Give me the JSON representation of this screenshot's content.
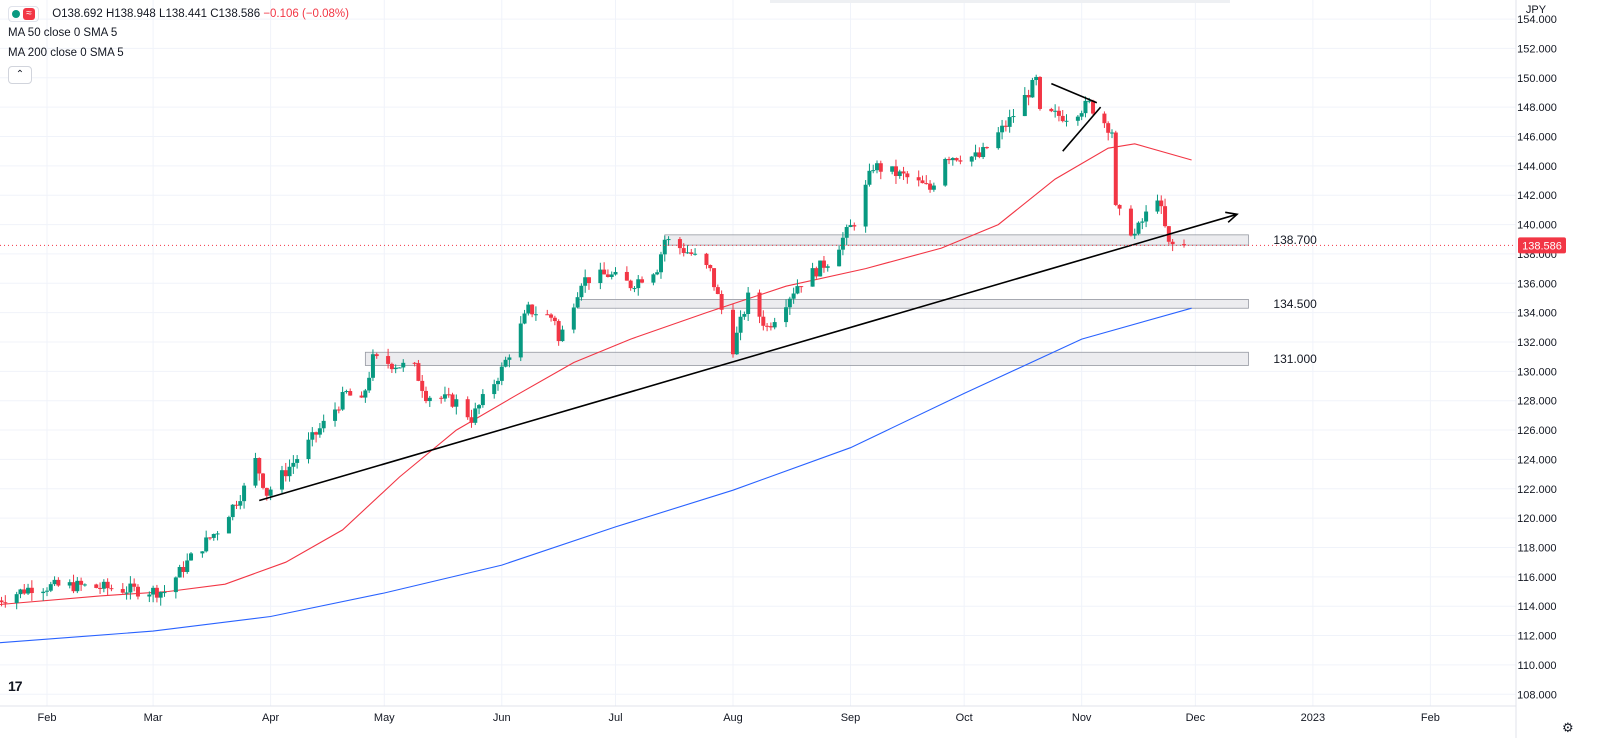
{
  "legend": {
    "ohlc_prefix": "O",
    "open": "138.692",
    "high_prefix": "H",
    "high": "138.948",
    "low_prefix": "L",
    "low": "138.441",
    "close_prefix": "C",
    "close": "138.586",
    "change": "−0.106 (−0.08%)",
    "ma50": "MA 50 close 0 SMA 5",
    "ma200": "MA 200 close 0 SMA 5"
  },
  "currency": "JPY",
  "price_badge": "138.586",
  "icons": [
    "circle-dot-icon",
    "wave-icon",
    "chevron-up-icon",
    "tradingview-logo-icon",
    "gear-icon"
  ],
  "colors": {
    "up": "#089981",
    "down": "#f23645",
    "ma50": "#f23645",
    "ma200": "#2962ff",
    "zone": "#e6e6ea"
  },
  "chart_data": {
    "type": "candlestick",
    "y_range": [
      107.2,
      155.3
    ],
    "y_ticks": [
      "108.000",
      "110.000",
      "112.000",
      "114.000",
      "116.000",
      "118.000",
      "120.000",
      "122.000",
      "124.000",
      "126.000",
      "128.000",
      "130.000",
      "132.000",
      "134.000",
      "136.000",
      "138.000",
      "140.000",
      "142.000",
      "144.000",
      "146.000",
      "148.000",
      "150.000",
      "152.000",
      "154.000"
    ],
    "x_labels": [
      {
        "label": "Feb",
        "date": "2022-02-01"
      },
      {
        "label": "Mar",
        "date": "2022-03-01"
      },
      {
        "label": "Apr",
        "date": "2022-04-01"
      },
      {
        "label": "May",
        "date": "2022-05-01"
      },
      {
        "label": "Jun",
        "date": "2022-06-01"
      },
      {
        "label": "Jul",
        "date": "2022-07-01"
      },
      {
        "label": "Aug",
        "date": "2022-08-01"
      },
      {
        "label": "Sep",
        "date": "2022-09-01"
      },
      {
        "label": "Oct",
        "date": "2022-10-01"
      },
      {
        "label": "Nov",
        "date": "2022-11-01"
      },
      {
        "label": "Dec",
        "date": "2022-12-01"
      },
      {
        "label": "2023",
        "date": "2023-01-01"
      },
      {
        "label": "Feb",
        "date": "2023-02-01"
      }
    ],
    "price_keyframes": [
      [
        "2022-01-19",
        114.4
      ],
      [
        "2022-01-28",
        115.3
      ],
      [
        "2022-02-08",
        115.4
      ],
      [
        "2022-02-24",
        115.1
      ],
      [
        "2022-03-04",
        115.0
      ],
      [
        "2022-03-11",
        117.3
      ],
      [
        "2022-03-18",
        119.2
      ],
      [
        "2022-03-25",
        122.0
      ],
      [
        "2022-03-28",
        123.9
      ],
      [
        "2022-03-31",
        121.7
      ],
      [
        "2022-04-08",
        124.1
      ],
      [
        "2022-04-15",
        126.4
      ],
      [
        "2022-04-21",
        128.5
      ],
      [
        "2022-04-25",
        127.8
      ],
      [
        "2022-04-28",
        130.8
      ],
      [
        "2022-05-09",
        130.2
      ],
      [
        "2022-05-12",
        128.4
      ],
      [
        "2022-05-20",
        127.9
      ],
      [
        "2022-05-24",
        126.8
      ],
      [
        "2022-06-01",
        130.1
      ],
      [
        "2022-06-08",
        134.2
      ],
      [
        "2022-06-15",
        133.6
      ],
      [
        "2022-06-16",
        132.0
      ],
      [
        "2022-06-22",
        136.2
      ],
      [
        "2022-06-29",
        136.6
      ],
      [
        "2022-07-05",
        135.9
      ],
      [
        "2022-07-12",
        137.1
      ],
      [
        "2022-07-14",
        139.0
      ],
      [
        "2022-07-21",
        138.0
      ],
      [
        "2022-07-26",
        136.8
      ],
      [
        "2022-08-01",
        131.6
      ],
      [
        "2022-08-05",
        135.0
      ],
      [
        "2022-08-10",
        133.0
      ],
      [
        "2022-08-18",
        135.9
      ],
      [
        "2022-08-26",
        137.5
      ],
      [
        "2022-09-02",
        140.2
      ],
      [
        "2022-09-07",
        144.0
      ],
      [
        "2022-09-15",
        143.3
      ],
      [
        "2022-09-22",
        142.4
      ],
      [
        "2022-09-26",
        144.7
      ],
      [
        "2022-10-05",
        144.6
      ],
      [
        "2022-10-13",
        147.1
      ],
      [
        "2022-10-20",
        149.8
      ],
      [
        "2022-10-21",
        147.5
      ],
      [
        "2022-10-28",
        147.4
      ],
      [
        "2022-11-03",
        148.2
      ],
      [
        "2022-11-09",
        146.4
      ],
      [
        "2022-11-10",
        141.0
      ],
      [
        "2022-11-15",
        139.3
      ],
      [
        "2022-11-21",
        142.0
      ],
      [
        "2022-11-24",
        138.6
      ],
      [
        "2022-11-28",
        138.586
      ]
    ],
    "moving_averages": [
      {
        "name": "MA 50",
        "color": "#f23645",
        "points": [
          [
            "2022-01-19",
            114.1
          ],
          [
            "2022-02-15",
            114.7
          ],
          [
            "2022-03-05",
            115.0
          ],
          [
            "2022-03-20",
            115.5
          ],
          [
            "2022-04-05",
            117.0
          ],
          [
            "2022-04-20",
            119.2
          ],
          [
            "2022-05-05",
            122.8
          ],
          [
            "2022-05-20",
            126.0
          ],
          [
            "2022-06-05",
            128.4
          ],
          [
            "2022-06-20",
            130.6
          ],
          [
            "2022-07-05",
            132.2
          ],
          [
            "2022-07-25",
            134.0
          ],
          [
            "2022-08-15",
            135.8
          ],
          [
            "2022-09-05",
            137.0
          ],
          [
            "2022-09-25",
            138.4
          ],
          [
            "2022-10-10",
            140.0
          ],
          [
            "2022-10-25",
            143.1
          ],
          [
            "2022-11-08",
            145.2
          ],
          [
            "2022-11-15",
            145.5
          ],
          [
            "2022-11-30",
            144.4
          ]
        ]
      },
      {
        "name": "MA 200",
        "color": "#2962ff",
        "points": [
          [
            "2022-01-19",
            111.5
          ],
          [
            "2022-03-01",
            112.3
          ],
          [
            "2022-04-01",
            113.3
          ],
          [
            "2022-05-01",
            114.9
          ],
          [
            "2022-06-01",
            116.8
          ],
          [
            "2022-07-01",
            119.4
          ],
          [
            "2022-08-01",
            121.9
          ],
          [
            "2022-09-01",
            124.8
          ],
          [
            "2022-10-01",
            128.5
          ],
          [
            "2022-11-01",
            132.2
          ],
          [
            "2022-11-30",
            134.3
          ]
        ]
      }
    ],
    "zones": [
      {
        "label": "138.700",
        "date_from": "2022-07-14",
        "date_to": "2022-12-15",
        "low": 138.6,
        "high": 139.3
      },
      {
        "label": "134.500",
        "date_from": "2022-06-21",
        "date_to": "2022-12-15",
        "low": 134.3,
        "high": 134.9
      },
      {
        "label": "131.000",
        "date_from": "2022-04-26",
        "date_to": "2022-12-15",
        "low": 130.4,
        "high": 131.3
      }
    ],
    "trendlines": [
      {
        "from": [
          "2022-03-29",
          121.2
        ],
        "to": [
          "2022-12-12",
          140.7
        ],
        "arrow": true
      },
      {
        "from": [
          "2022-10-24",
          149.6
        ],
        "to": [
          "2022-11-05",
          148.3
        ],
        "arrow": false
      },
      {
        "from": [
          "2022-10-27",
          145.0
        ],
        "to": [
          "2022-11-06",
          148.0
        ],
        "arrow": false
      }
    ],
    "last_price": 138.586
  }
}
